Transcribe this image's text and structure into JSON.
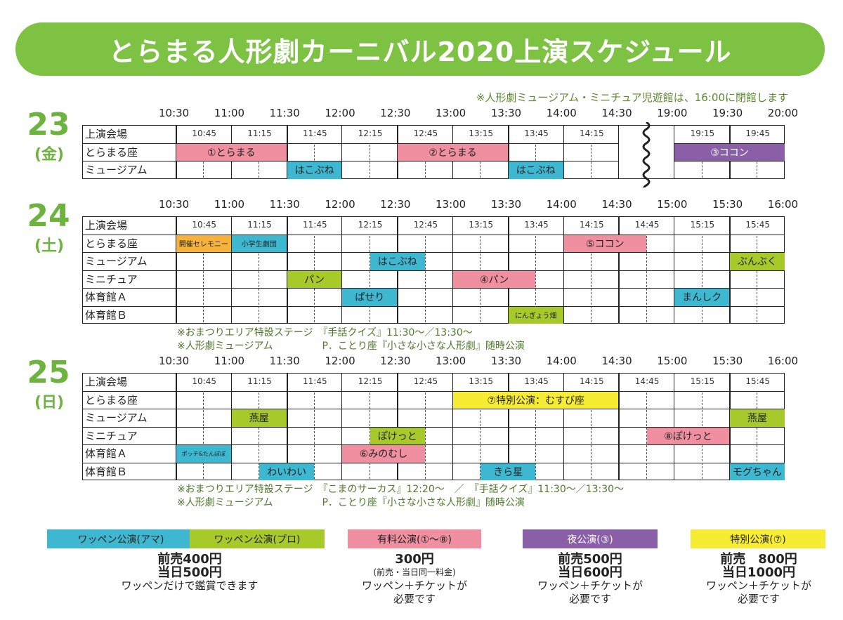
{
  "title": "とらまる人形劇カーニバル2020上演スケジュール",
  "top_note": "※人形劇ミュージアム・ミニチュア児遊館は、16:00に閉館します",
  "colors": {
    "amateur": "#3db8d0",
    "pro": "#a8c92a",
    "paid": "#f08fa0",
    "night": "#8b5fa8",
    "special": "#f6ec34",
    "orange": "#f6b23a",
    "green": "#7dc243"
  },
  "days": [
    {
      "num": "23",
      "weekday": "(金)",
      "top": 160,
      "hours": [
        "10:30",
        "11:00",
        "11:30",
        "12:00",
        "12:30",
        "13:00",
        "13:30",
        "14:00",
        "14:30",
        "19:00",
        "19:30",
        "20:00"
      ],
      "subs": [
        "10:45",
        "11:15",
        "11:45",
        "12:15",
        "12:45",
        "13:15",
        "13:45",
        "14:15",
        "",
        "19:15",
        "19:45"
      ],
      "rows": [
        "上演会場",
        "とらまる座",
        "ミュージアム"
      ],
      "break_col": 8,
      "blocks": [
        {
          "row": 1,
          "start": 0,
          "end": 2,
          "label": "①とらまる",
          "color": "paid"
        },
        {
          "row": 1,
          "start": 4,
          "end": 6,
          "label": "②とらまる",
          "color": "paid"
        },
        {
          "row": 1,
          "start": 9,
          "end": 11,
          "label": "③ココン",
          "color": "night",
          "white": true
        },
        {
          "row": 2,
          "start": 2,
          "end": 3,
          "label": "はこぶね",
          "color": "amateur"
        },
        {
          "row": 2,
          "start": 6,
          "end": 7,
          "label": "はこぶね",
          "color": "amateur"
        }
      ],
      "notes": []
    },
    {
      "num": "24",
      "weekday": "(土)",
      "top": 290,
      "hours": [
        "10:30",
        "11:00",
        "11:30",
        "12:00",
        "12:30",
        "13:00",
        "13:30",
        "14:00",
        "14:30",
        "15:00",
        "15:30",
        "16:00"
      ],
      "subs": [
        "10:45",
        "11:15",
        "11:45",
        "12:15",
        "12:45",
        "13:15",
        "13:45",
        "14:15",
        "14:45",
        "15:15",
        "15:45"
      ],
      "rows": [
        "上演会場",
        "とらまる座",
        "ミュージアム",
        "ミニチュア",
        "体育館Ａ",
        "体育館Ｂ"
      ],
      "break_col": -1,
      "blocks": [
        {
          "row": 1,
          "start": 0,
          "end": 1,
          "label": "開催セレモニー",
          "color": "orange",
          "cls": "small"
        },
        {
          "row": 1,
          "start": 1,
          "end": 2,
          "label": "小学生劇団",
          "color": "amateur",
          "cls": "small"
        },
        {
          "row": 1,
          "start": 7,
          "end": 8.5,
          "label": "⑤ココン",
          "color": "paid"
        },
        {
          "row": 2,
          "start": 3.5,
          "end": 4.5,
          "label": "はこぶね",
          "color": "amateur"
        },
        {
          "row": 2,
          "start": 10,
          "end": 11,
          "label": "ぶんぶく",
          "color": "pro"
        },
        {
          "row": 3,
          "start": 2,
          "end": 3,
          "label": "パン",
          "color": "pro"
        },
        {
          "row": 3,
          "start": 5,
          "end": 6.5,
          "label": "④パン",
          "color": "paid"
        },
        {
          "row": 4,
          "start": 3,
          "end": 4,
          "label": "ぱせり",
          "color": "amateur"
        },
        {
          "row": 4,
          "start": 9,
          "end": 10,
          "label": "まんしク",
          "color": "amateur"
        },
        {
          "row": 5,
          "start": 6,
          "end": 7,
          "label": "にんぎょう畑",
          "color": "pro",
          "cls": "small"
        }
      ],
      "notes": [
        "※おまつりエリア特設ステージ　『手話クイズ』11:30～／13:30～",
        "※人形劇ミュージアム　　　　　P．ことり座『小さな小さな人形劇』随時公演"
      ]
    },
    {
      "num": "25",
      "weekday": "(日)",
      "top": 513,
      "hours": [
        "10:30",
        "11:00",
        "11:30",
        "12:00",
        "12:30",
        "13:00",
        "13:30",
        "14:00",
        "14:30",
        "15:00",
        "15:30",
        "16:00"
      ],
      "subs": [
        "10:45",
        "11:15",
        "11:45",
        "12:15",
        "12:45",
        "13:15",
        "13:45",
        "14:15",
        "14:45",
        "15:15",
        "15:45"
      ],
      "rows": [
        "上演会場",
        "とらまる座",
        "ミュージアム",
        "ミニチュア",
        "体育館Ａ",
        "体育館Ｂ"
      ],
      "break_col": -1,
      "blocks": [
        {
          "row": 1,
          "start": 5,
          "end": 8,
          "label": "⑦特別公演：むすび座",
          "color": "special"
        },
        {
          "row": 2,
          "start": 1,
          "end": 2,
          "label": "燕屋",
          "color": "pro"
        },
        {
          "row": 2,
          "start": 10,
          "end": 11,
          "label": "燕屋",
          "color": "pro"
        },
        {
          "row": 3,
          "start": 3.5,
          "end": 4.5,
          "label": "ぽけっと",
          "color": "pro"
        },
        {
          "row": 3,
          "start": 8.5,
          "end": 10,
          "label": "⑧ぽけっと",
          "color": "paid"
        },
        {
          "row": 4,
          "start": 0,
          "end": 1,
          "label": "ポッチ&たんぽぽ",
          "color": "amateur",
          "cls": "tiny"
        },
        {
          "row": 4,
          "start": 3,
          "end": 4.5,
          "label": "⑥みのむし",
          "color": "paid"
        },
        {
          "row": 5,
          "start": 1.5,
          "end": 2.5,
          "label": "わいわい",
          "color": "amateur"
        },
        {
          "row": 5,
          "start": 5.5,
          "end": 6.5,
          "label": "きら星",
          "color": "amateur"
        },
        {
          "row": 5,
          "start": 10,
          "end": 11,
          "label": "モグちゃん",
          "color": "amateur"
        }
      ],
      "notes": [
        "※おまつりエリア特設ステージ　『こまのサーカス』12:20～　／　『手話クイズ』11:30～／13:30～",
        "※人形劇ミュージアム　　　　　P．ことり座『小さな小さな人形劇』随時公演"
      ]
    }
  ],
  "legend": [
    {
      "label": "ワッペン公演(アマ)",
      "color": "amateur",
      "left": 67,
      "width": 210
    },
    {
      "label": "ワッペン公演(プロ)",
      "color": "pro",
      "left": 270,
      "width": 192
    },
    {
      "label": "有料公演(①～⑧)",
      "color": "paid",
      "left": 495,
      "width": 190
    },
    {
      "label": "夜公演(③)",
      "color": "night",
      "left": 744,
      "width": 192,
      "white": true
    },
    {
      "label": "特別公演(⑦)",
      "color": "special",
      "left": 983,
      "width": 192
    }
  ],
  "prices": [
    {
      "left": 120,
      "width": 300,
      "lines": [
        {
          "t": "前売400円",
          "c": "big"
        },
        {
          "t": "当日500円",
          "c": "big"
        },
        {
          "t": "ワッペンだけで鑑賞できます",
          "c": ""
        }
      ]
    },
    {
      "left": 440,
      "width": 300,
      "lines": [
        {
          "t": "300円",
          "c": "big"
        },
        {
          "t": "(前売・当日同一料金)",
          "c": "sm"
        },
        {
          "t": "ワッペン＋チケットが",
          "c": ""
        },
        {
          "t": "必要です",
          "c": ""
        }
      ]
    },
    {
      "left": 690,
      "width": 300,
      "lines": [
        {
          "t": "前売500円",
          "c": "big"
        },
        {
          "t": "当日600円",
          "c": "big"
        },
        {
          "t": "ワッペン＋チケットが",
          "c": ""
        },
        {
          "t": "必要です",
          "c": ""
        }
      ]
    },
    {
      "left": 930,
      "width": 300,
      "lines": [
        {
          "t": "前売　800円",
          "c": "big"
        },
        {
          "t": "当日1000円",
          "c": "big"
        },
        {
          "t": "ワッペン＋チケットが",
          "c": ""
        },
        {
          "t": "必要です",
          "c": ""
        }
      ]
    }
  ]
}
